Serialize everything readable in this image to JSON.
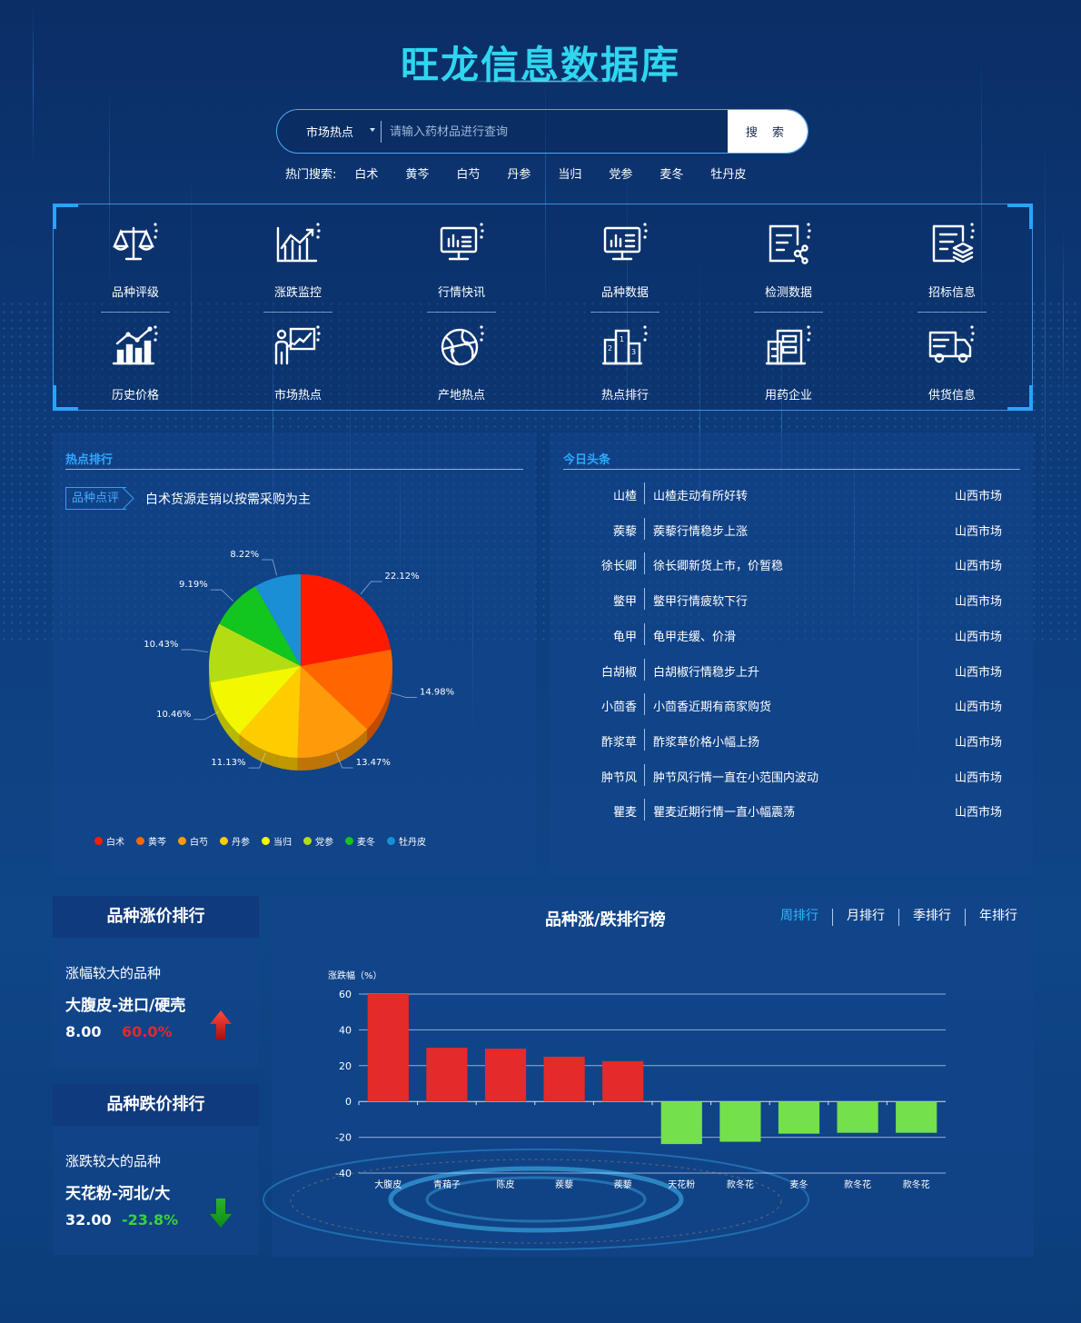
{
  "header": {
    "title": "旺龙信息数据库",
    "search": {
      "scope": "市场热点",
      "placeholder": "请输入药材品进行查询",
      "button": "搜 索"
    },
    "hot": {
      "label": "热门搜索:",
      "keywords": [
        "白术",
        "黄芩",
        "白芍",
        "丹参",
        "当归",
        "党参",
        "麦冬",
        "牡丹皮"
      ]
    }
  },
  "nav": [
    {
      "label": "品种评级",
      "icon": "scale-icon"
    },
    {
      "label": "涨跌监控",
      "icon": "rising-chart-icon"
    },
    {
      "label": "行情快讯",
      "icon": "monitor-chart-icon"
    },
    {
      "label": "品种数据",
      "icon": "monitor-data-icon"
    },
    {
      "label": "检测数据",
      "icon": "document-network-icon"
    },
    {
      "label": "招标信息",
      "icon": "document-stack-icon"
    },
    {
      "label": "历史价格",
      "icon": "bar-trend-icon"
    },
    {
      "label": "市场热点",
      "icon": "presenter-icon"
    },
    {
      "label": "产地热点",
      "icon": "globe-icon"
    },
    {
      "label": "热点排行",
      "icon": "podium-icon"
    },
    {
      "label": "用药企业",
      "icon": "building-icon"
    },
    {
      "label": "供货信息",
      "icon": "truck-icon"
    }
  ],
  "hot_rank": {
    "title": "热点排行",
    "tag": "品种点评",
    "headline": "白术货源走销以按需采购为主"
  },
  "today": {
    "title": "今日头条",
    "items": [
      {
        "name": "山楂",
        "title": "山楂走动有所好转",
        "market": "山西市场"
      },
      {
        "name": "蒺藜",
        "title": "蒺藜行情稳步上涨",
        "market": "山西市场"
      },
      {
        "name": "徐长卿",
        "title": "徐长卿新货上市，价暂稳",
        "market": "山西市场"
      },
      {
        "name": "鳖甲",
        "title": "鳖甲行情疲软下行",
        "market": "山西市场"
      },
      {
        "name": "龟甲",
        "title": "龟甲走缓、价滑",
        "market": "山西市场"
      },
      {
        "name": "白胡椒",
        "title": "白胡椒行情稳步上升",
        "market": "山西市场"
      },
      {
        "name": "小茴香",
        "title": "小茴香近期有商家购货",
        "market": "山西市场"
      },
      {
        "name": "酢浆草",
        "title": "酢浆草价格小幅上扬",
        "market": "山西市场"
      },
      {
        "name": "肿节风",
        "title": "肿节风行情一直在小范围内波动",
        "market": "山西市场"
      },
      {
        "name": "瞿麦",
        "title": "瞿麦近期行情一直小幅震荡",
        "market": "山西市场"
      }
    ]
  },
  "rise_card": {
    "title": "品种涨价排行",
    "label": "涨幅较大的品种",
    "name": "大腹皮-进口/硬壳",
    "price": "8.00",
    "change": "60.0%",
    "color": "#e02a2a"
  },
  "fall_card": {
    "title": "品种跌价排行",
    "label": "涨跌较大的品种",
    "name": "天花粉-河北/大",
    "price": "32.00",
    "change": "-23.8%",
    "color": "#37d43a"
  },
  "rank_panel": {
    "title": "品种涨/跌排行榜",
    "tabs": [
      "周排行",
      "月排行",
      "季排行",
      "年排行"
    ],
    "active_tab": 0
  },
  "chart_data": [
    {
      "type": "pie",
      "categories": [
        "白术",
        "黄芩",
        "白芍",
        "丹参",
        "当归",
        "党参",
        "麦冬",
        "牡丹皮"
      ],
      "values": [
        22.12,
        14.98,
        13.47,
        11.13,
        10.46,
        10.43,
        9.19,
        8.22
      ],
      "labels": [
        "22.12%",
        "14.98%",
        "13.47%",
        "11.13%",
        "10.46%",
        "10.43%",
        "9.19%",
        "8.22%"
      ],
      "colors": [
        "#ff1a00",
        "#ff6600",
        "#ff9a0a",
        "#ffcc00",
        "#f3f700",
        "#b3dd13",
        "#12c51f",
        "#1b8fd6"
      ],
      "legend": "bottom"
    },
    {
      "type": "bar",
      "ylabel": "涨跌幅（%）",
      "ylim": [
        -40,
        60
      ],
      "yticks": [
        "60",
        "40",
        "20",
        "0",
        "-20",
        "-40"
      ],
      "categories": [
        "大腹皮",
        "青葙子",
        "陈皮",
        "蒺藜",
        "蒺藜",
        "天花粉",
        "款冬花",
        "麦冬",
        "款冬花",
        "款冬花"
      ],
      "values": [
        60,
        30,
        29.5,
        25,
        22.5,
        -23.8,
        -22.5,
        -18,
        -17.5,
        -17.5
      ],
      "colors": {
        "up": "#e52a2a",
        "down": "#73e04c"
      },
      "grid": true
    }
  ]
}
